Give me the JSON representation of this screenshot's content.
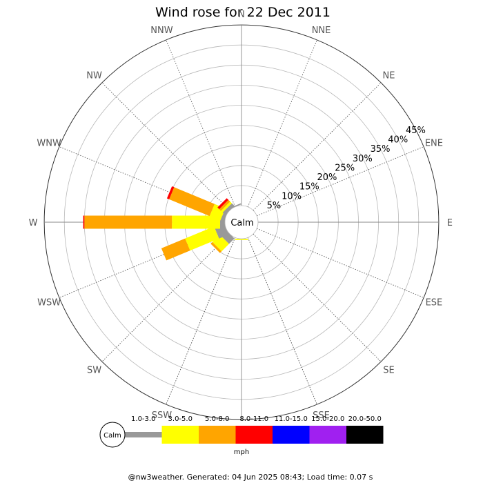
{
  "chart_data": {
    "type": "wind-rose",
    "title": "Wind rose for 22 Dec 2011",
    "calm_label": "Calm",
    "unit": "mph",
    "directions": [
      "N",
      "NNE",
      "NE",
      "ENE",
      "E",
      "ESE",
      "SE",
      "SSE",
      "S",
      "SSW",
      "SW",
      "WSW",
      "W",
      "WNW",
      "NW",
      "NNW"
    ],
    "rings": [
      "5%",
      "10%",
      "15%",
      "20%",
      "25%",
      "30%",
      "35%",
      "40%",
      "45%"
    ],
    "ring_values": [
      5,
      10,
      15,
      20,
      25,
      30,
      35,
      40,
      45
    ],
    "max_percent": 45,
    "speed_bins": [
      {
        "label": "1.0-3.0",
        "color": "#999999"
      },
      {
        "label": "3.0-5.0",
        "color": "#ffff00"
      },
      {
        "label": "5.0-8.0",
        "color": "#ffa500"
      },
      {
        "label": "8.0-11.0",
        "color": "#ff0000"
      },
      {
        "label": "11.0-15.0",
        "color": "#0000ff"
      },
      {
        "label": "15.0-20.0",
        "color": "#a020f0"
      },
      {
        "label": "20.0-50.0",
        "color": "#000000"
      }
    ],
    "series": [
      {
        "direction": "N",
        "values": [
          0,
          0,
          0,
          0,
          0,
          0,
          0
        ]
      },
      {
        "direction": "NNE",
        "values": [
          0,
          0,
          0,
          0,
          0,
          0,
          0
        ]
      },
      {
        "direction": "NE",
        "values": [
          0,
          0,
          0,
          0,
          0,
          0,
          0
        ]
      },
      {
        "direction": "ENE",
        "values": [
          0,
          0,
          0,
          0,
          0,
          0,
          0
        ]
      },
      {
        "direction": "E",
        "values": [
          0,
          0,
          0,
          0,
          0,
          0,
          0
        ]
      },
      {
        "direction": "ESE",
        "values": [
          0,
          0,
          0,
          0,
          0,
          0,
          0
        ]
      },
      {
        "direction": "SE",
        "values": [
          0,
          0,
          0,
          0,
          0,
          0,
          0
        ]
      },
      {
        "direction": "SSE",
        "values": [
          0,
          0,
          0,
          0,
          0,
          0,
          0
        ]
      },
      {
        "direction": "S",
        "values": [
          0,
          0.3,
          0,
          0,
          0,
          0,
          0
        ]
      },
      {
        "direction": "SSW",
        "values": [
          0,
          0,
          0,
          0,
          0,
          0,
          0
        ]
      },
      {
        "direction": "SW",
        "values": [
          1.9,
          2.6,
          0.6,
          0,
          0,
          0,
          0
        ]
      },
      {
        "direction": "WSW",
        "values": [
          2.6,
          7.8,
          6.4,
          0,
          0,
          0,
          0
        ]
      },
      {
        "direction": "W",
        "values": [
          1.2,
          12.0,
          21.8,
          0.3,
          0,
          0,
          0
        ]
      },
      {
        "direction": "WNW",
        "values": [
          0.9,
          2.9,
          10.9,
          0.6,
          0,
          0,
          0
        ]
      },
      {
        "direction": "NW",
        "values": [
          0.9,
          0.6,
          0.6,
          0.6,
          0,
          0,
          0
        ]
      },
      {
        "direction": "NNW",
        "values": [
          0.3,
          0,
          0,
          0,
          0,
          0,
          0
        ]
      }
    ]
  },
  "footer": "@nw3weather. Generated: 04 Jun 2025 08:43; Load time: 0.07 s"
}
